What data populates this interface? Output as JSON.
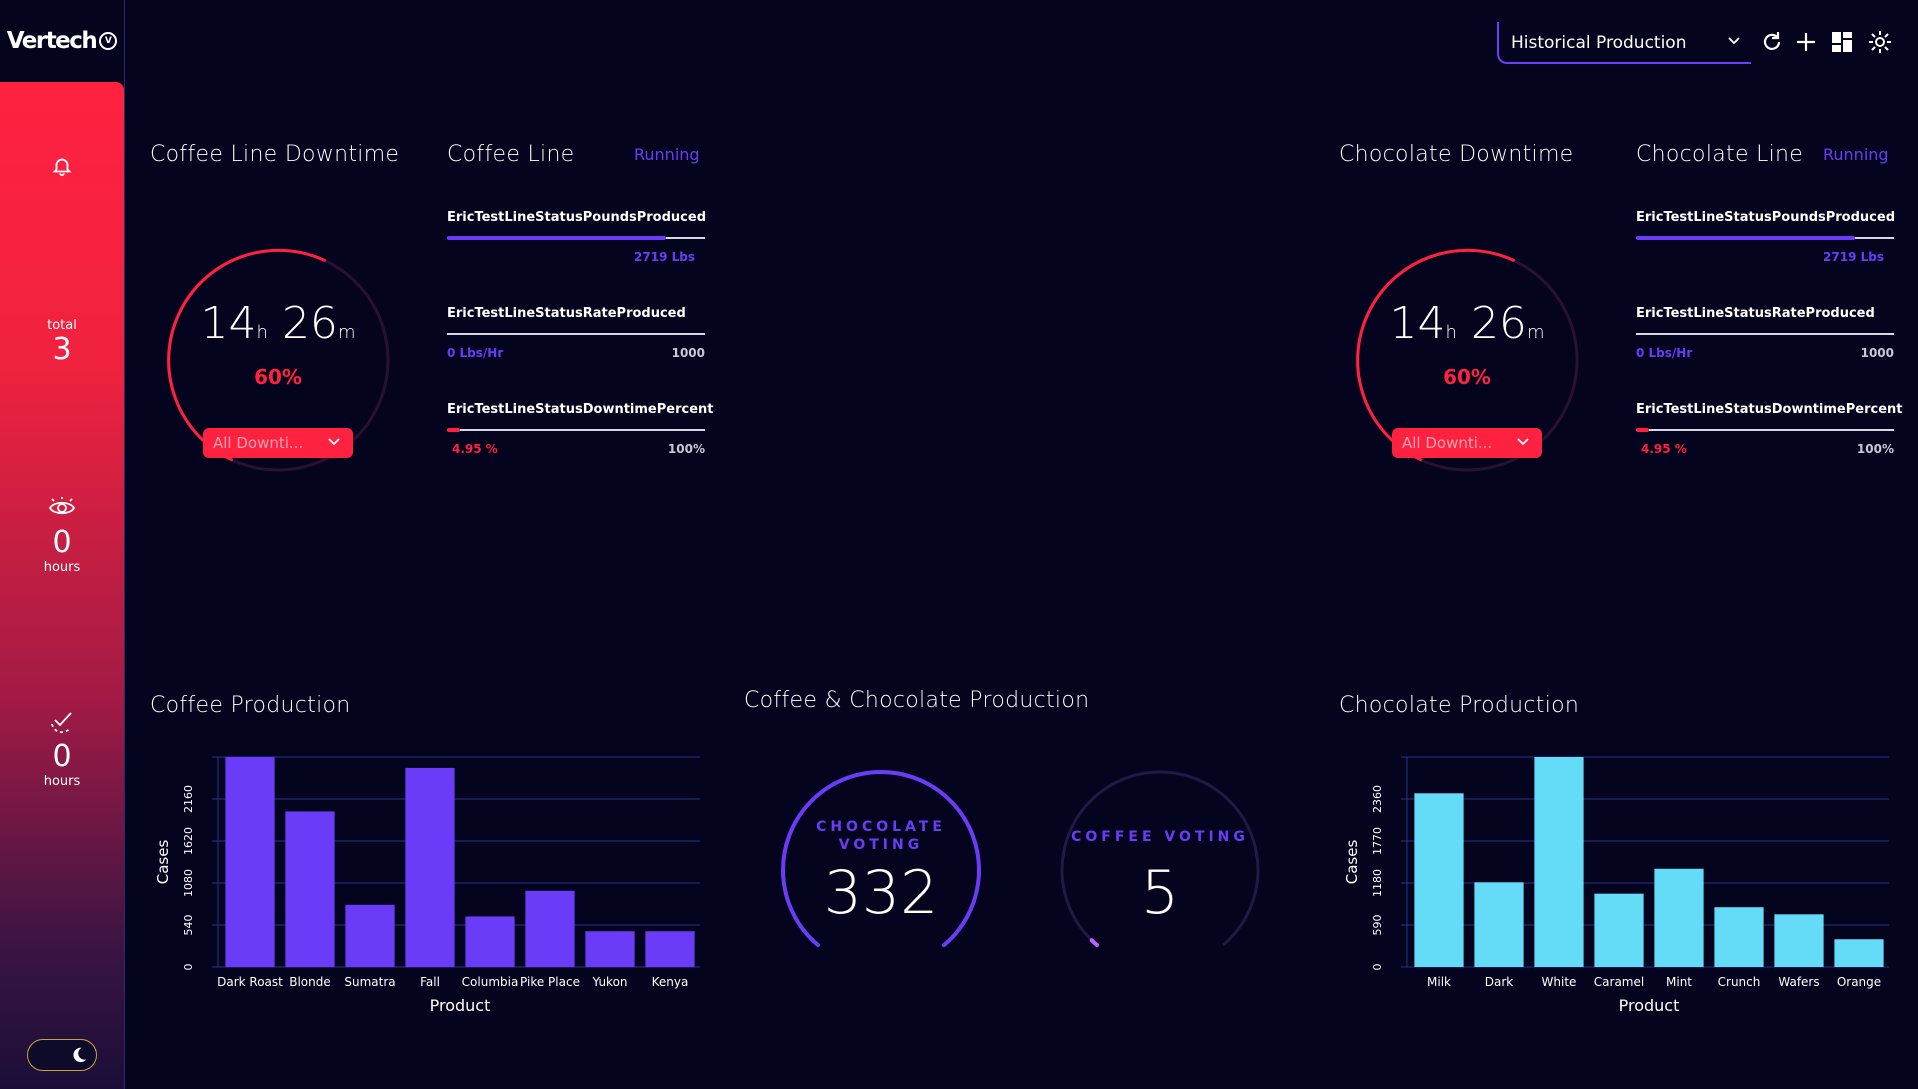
{
  "app": {
    "logo": "Vertech",
    "logo_badge": "V"
  },
  "sidebar": {
    "stats": [
      {
        "label": "total",
        "value": "3"
      },
      {
        "value": "0",
        "unit": "hours"
      },
      {
        "value": "0",
        "unit": "hours"
      }
    ]
  },
  "header": {
    "view_select": "Historical Production"
  },
  "coffee_downtime": {
    "title": "Coffee Line Downtime",
    "hours": "14",
    "hours_unit": "h",
    "minutes": "26",
    "minutes_unit": "m",
    "percent": "60%",
    "percent_value": 0.6,
    "filter": "All Downti..."
  },
  "coffee_line": {
    "title": "Coffee Line",
    "status": "Running",
    "metrics": [
      {
        "name": "EricTestLineStatusPoundsProduced",
        "value": "2719 Lbs",
        "max": "",
        "fraction": 0.85,
        "color": "#6a3cf7"
      },
      {
        "name": "EricTestLineStatusRateProduced",
        "value": "0 Lbs/Hr",
        "max": "1000",
        "fraction": 0,
        "color": "#6a3cf7"
      },
      {
        "name": "EricTestLineStatusDowntimePercent",
        "value": "4.95 %",
        "max": "100%",
        "fraction": 0.0495,
        "color": "#ff2140"
      }
    ]
  },
  "chocolate_downtime": {
    "title": "Chocolate Downtime",
    "hours": "14",
    "hours_unit": "h",
    "minutes": "26",
    "minutes_unit": "m",
    "percent": "60%",
    "percent_value": 0.6,
    "filter": "All Downti..."
  },
  "chocolate_line": {
    "title": "Chocolate Line",
    "status": "Running",
    "metrics": [
      {
        "name": "EricTestLineStatusPoundsProduced",
        "value": "2719 Lbs",
        "max": "",
        "fraction": 0.85,
        "color": "#6a3cf7"
      },
      {
        "name": "EricTestLineStatusRateProduced",
        "value": "0 Lbs/Hr",
        "max": "1000",
        "fraction": 0,
        "color": "#6a3cf7"
      },
      {
        "name": "EricTestLineStatusDowntimePercent",
        "value": "4.95 %",
        "max": "100%",
        "fraction": 0.0495,
        "color": "#ff2140"
      }
    ]
  },
  "combined": {
    "title": "Coffee & Chocolate Production",
    "chocolate_voting": {
      "label_line1": "CHOCOLATE",
      "label_line2": "VOTING",
      "value": "332",
      "fraction": 1.0
    },
    "coffee_voting": {
      "label": "COFFEE VOTING",
      "value": "5",
      "fraction": 0.015
    }
  },
  "chart_data": [
    {
      "type": "bar",
      "title": "Coffee Production",
      "xlabel": "Product",
      "ylabel": "Cases",
      "categories": [
        "Dark Roast",
        "Blonde",
        "Sumatra",
        "Fall",
        "Columbia",
        "Pike Place",
        "Yukon",
        "Kenya"
      ],
      "values": [
        2700,
        2000,
        800,
        2560,
        650,
        980,
        460,
        460
      ],
      "yticks": [
        0,
        540,
        1080,
        1620,
        2160
      ],
      "ylim": [
        0,
        2700
      ],
      "color": "#6a3cf7"
    },
    {
      "type": "bar",
      "title": "Chocolate Production",
      "xlabel": "Product",
      "ylabel": "Cases",
      "categories": [
        "Milk",
        "Dark",
        "White",
        "Caramel",
        "Mint",
        "Crunch",
        "Wafers",
        "Orange"
      ],
      "values": [
        2440,
        1190,
        2950,
        1030,
        1380,
        840,
        740,
        390
      ],
      "yticks": [
        0,
        590,
        1180,
        1770,
        2360
      ],
      "ylim": [
        0,
        2950
      ],
      "color": "#64dcf8"
    }
  ]
}
